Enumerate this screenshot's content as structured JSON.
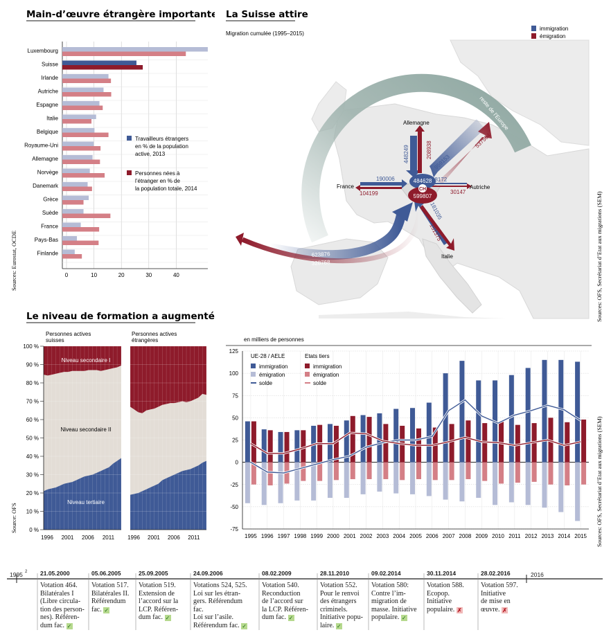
{
  "colors": {
    "blue": "#3f5a96",
    "blue_light": "#b5bcd6",
    "red": "#8e1b2b",
    "red_light": "#d47f86",
    "beige": "#e3ddd6",
    "ring": "#9fb3ae"
  },
  "panel1": {
    "title": "Main-d’œuvre étrangère importante",
    "source": "Sources: Eurostat, OCDE",
    "legend_workers": [
      "Travailleurs étrangers",
      "en % de la population",
      "active, 2013"
    ],
    "legend_born": [
      "Personnes nées à",
      "l’étranger en % de",
      "la population totale, 2014"
    ]
  },
  "panel2": {
    "title": "La Suisse attire",
    "subtitle": "Migration cumulée (1995–2015)",
    "legend_imm": "immigration",
    "legend_emi": "émigration",
    "source": "Sources: OFS, Secrétariat d’Etat aux migrations (SEM)",
    "center": "CH",
    "center_imm": "484628",
    "center_emi": "599807",
    "flows": [
      {
        "label": "Allemagne",
        "imm": "448249",
        "emi": "208938"
      },
      {
        "label": "reste de l’Europe",
        "imm": "959153",
        "emi": "537564"
      },
      {
        "label": "France",
        "imm": "190006",
        "emi": "104199"
      },
      {
        "label": "Autriche",
        "imm": "48172",
        "emi": "30147"
      },
      {
        "label": "Italie",
        "imm": "181035",
        "emi": "151375"
      },
      {
        "label": "reste du monde",
        "imm": "623876",
        "emi": "328768"
      }
    ]
  },
  "panel3": {
    "title": "Le niveau de formation a augmenté",
    "label_swiss": [
      "Personnes actives",
      "suisses"
    ],
    "label_foreign": [
      "Personnes actives",
      "étrangères"
    ],
    "level_sec1": "Niveau secondaire I",
    "level_sec2": "Niveau secondaire II",
    "level_tert": "Niveau tertiaire",
    "source": "Source: OFS"
  },
  "panel4": {
    "unit": "en milliers de personnes",
    "group_eu": "UE-28 / AELE",
    "group_third": "Etats tiers",
    "l_imm": "immigration",
    "l_emi": "émigration",
    "l_solde": "solde",
    "source": "Sources: OFS, Secrétariat d’Etat aux migrations (SEM)"
  },
  "chart_data": [
    {
      "type": "bar",
      "title": "Main-d’œuvre étrangère importante",
      "orientation": "horizontal",
      "categories": [
        "Luxembourg",
        "Suisse",
        "Irlande",
        "Autriche",
        "Espagne",
        "Italie",
        "Belgique",
        "Royaume-Uni",
        "Allemagne",
        "Norvège",
        "Danemark",
        "Grèce",
        "Suède",
        "France",
        "Pays-Bas",
        "Finlande"
      ],
      "series": [
        {
          "name": "Travailleurs étrangers en % de la population active, 2013",
          "values": [
            51.5,
            25.5,
            15.3,
            13.5,
            12,
            10.8,
            10.2,
            9.9,
            9.5,
            8.5,
            7.7,
            8.1,
            6.2,
            5.2,
            3.8,
            3.0
          ]
        },
        {
          "name": "Personnes nées à l’étranger en % de la population totale, 2014",
          "values": [
            43.5,
            27.8,
            16.2,
            16.3,
            13.2,
            9.1,
            15.3,
            12.4,
            12.2,
            13.9,
            9.3,
            6.2,
            16.0,
            11.9,
            11.7,
            5.6
          ]
        }
      ],
      "xlim": [
        -1,
        50
      ],
      "xticks": [
        0,
        10,
        20,
        30,
        40
      ]
    },
    {
      "type": "area",
      "title": "Le niveau de formation a augmenté",
      "x": [
        1996,
        1997,
        1998,
        1999,
        2000,
        2001,
        2002,
        2003,
        2004,
        2005,
        2006,
        2007,
        2008,
        2009,
        2010,
        2011,
        2012,
        2013,
        2014,
        2015
      ],
      "xticks": [
        1996,
        2001,
        2006,
        2011
      ],
      "yticks": [
        "0 %",
        "10 %",
        "20 %",
        "30 %",
        "40 %",
        "50 %",
        "60 %",
        "70 %",
        "80 %",
        "90 %",
        "100 %"
      ],
      "panels": [
        {
          "name": "Personnes actives suisses",
          "tertiaire": [
            21,
            22,
            22.5,
            23,
            24,
            25,
            25.5,
            26,
            27,
            28,
            29,
            29.5,
            30,
            31,
            32,
            33,
            34,
            36,
            37.5,
            39
          ],
          "secondaire_II_top": [
            84.5,
            84,
            84.5,
            85,
            85.5,
            86,
            86,
            86.5,
            86.5,
            86.5,
            86.5,
            87,
            87,
            87,
            86.5,
            87,
            87.5,
            88,
            88.5,
            89.5
          ]
        },
        {
          "name": "Personnes actives étrangères",
          "tertiaire": [
            19,
            19.5,
            20,
            21,
            22,
            23,
            24,
            25,
            27,
            28,
            29,
            30,
            31,
            32,
            32.5,
            33,
            34,
            35,
            36.5,
            37.5
          ],
          "secondaire_II_top": [
            67,
            65.5,
            64,
            63.5,
            65,
            65.5,
            66,
            67,
            68,
            68.5,
            69,
            69,
            69.5,
            70,
            69.5,
            70,
            71,
            72,
            74,
            73.5
          ]
        }
      ]
    },
    {
      "type": "bar",
      "title": "",
      "ylabel": "en milliers de personnes",
      "categories": [
        "1995",
        "1996",
        "1997",
        "1998",
        "1999",
        "2000",
        "2001",
        "2002",
        "2003",
        "2004",
        "2005",
        "2006",
        "2007",
        "2008",
        "2009",
        "2010",
        "2011",
        "2012",
        "2013",
        "2014",
        "2015"
      ],
      "series": [
        {
          "name": "UE-28 / AELE immigration",
          "values": [
            46,
            37,
            34,
            36,
            41,
            43,
            47,
            53,
            55,
            60,
            61,
            67,
            100,
            114,
            92,
            92,
            98,
            106,
            115,
            115,
            113
          ]
        },
        {
          "name": "UE-28 / AELE émigration",
          "values": [
            -46,
            -48,
            -46,
            -43,
            -43,
            -40,
            -40,
            -36,
            -33,
            -35,
            -36,
            -38,
            -42,
            -44,
            -40,
            -48,
            -45,
            -48,
            -51,
            -56,
            -66
          ]
        },
        {
          "name": "UE-28 / AELE solde",
          "values": [
            0,
            -11,
            -12,
            -7,
            -2,
            3,
            7,
            17,
            22,
            25,
            25,
            29,
            58,
            70,
            52,
            44,
            53,
            58,
            64,
            59,
            47
          ]
        },
        {
          "name": "Etats tiers immigration",
          "values": [
            46,
            36,
            34,
            36,
            42,
            41,
            52,
            51,
            43,
            41,
            38,
            39,
            43,
            47,
            44,
            46,
            42,
            44,
            50,
            45,
            48
          ]
        },
        {
          "name": "Etats tiers émigration",
          "values": [
            -25,
            -26,
            -24,
            -21,
            -21,
            -20,
            -19,
            -19,
            -19,
            -20,
            -19,
            -20,
            -20,
            -19,
            -21,
            -24,
            -23,
            -22,
            -25,
            -26,
            -25
          ]
        },
        {
          "name": "Etats tiers solde",
          "values": [
            21,
            10,
            10,
            15,
            21,
            21,
            33,
            32,
            24,
            21,
            19,
            19,
            23,
            28,
            23,
            22,
            19,
            22,
            25,
            19,
            23
          ]
        }
      ],
      "ylim": [
        -75,
        125
      ],
      "yticks": [
        -75,
        -50,
        -25,
        0,
        25,
        50,
        75,
        100,
        125
      ]
    }
  ],
  "timeline": {
    "start": "1995",
    "footnote": "2",
    "end": "2016",
    "events": [
      {
        "date": "21.05.2000",
        "text": [
          "Votation 464.",
          "Bilatérales I",
          "(Libre circula-",
          "tion des person-",
          "nes). Référen-",
          "dum fac."
        ],
        "result": "accepted"
      },
      {
        "date": "05.06.2005",
        "text": [
          "Votation 517.",
          "Bilatérales II.",
          "Référendum",
          "fac."
        ],
        "result": "accepted"
      },
      {
        "date": "25.09.2005",
        "text": [
          "Votation 519.",
          "Extension de",
          "l’accord sur la",
          "LCP. Référen-",
          "dum fac."
        ],
        "result": "accepted"
      },
      {
        "date": "24.09.2006",
        "text": [
          "Votations 524, 525.",
          "Loi sur les étran-",
          "gers. Référendum",
          "fac.",
          "Loi sur l’asile.",
          "Référendum fac."
        ],
        "result": "accepted"
      },
      {
        "date": "08.02.2009",
        "text": [
          "Votation 540.",
          "Reconduction",
          "de l’accord sur",
          "la LCP. Référen-",
          "dum fac."
        ],
        "result": "accepted"
      },
      {
        "date": "28.11.2010",
        "text": [
          "Votation 552.",
          "Pour le renvoi",
          "des étrangers",
          "criminels.",
          "Initiative popu-",
          "laire."
        ],
        "result": "accepted"
      },
      {
        "date": "09.02.2014",
        "text": [
          "Votation 580:",
          "Contre l’im-",
          "migration de",
          "masse. Initiative",
          "populaire."
        ],
        "result": "accepted"
      },
      {
        "date": "30.11.2014",
        "text": [
          "Votation 588.",
          "Ecopop.",
          "Initiative",
          "populaire."
        ],
        "result": "rejected"
      },
      {
        "date": "28.02.2016",
        "text": [
          "Votation 597.",
          "Initiative",
          "de mise en",
          "œuvre."
        ],
        "result": "rejected"
      }
    ]
  }
}
